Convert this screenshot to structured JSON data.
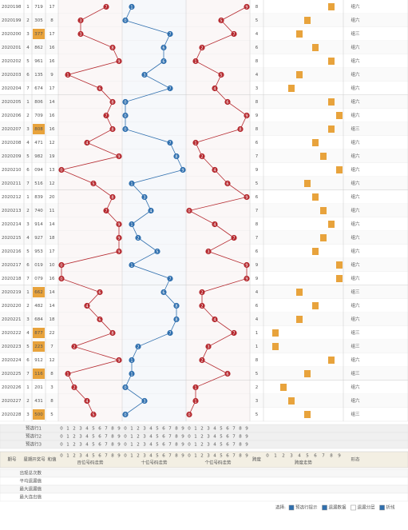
{
  "header": {
    "period": "期号",
    "weekday": "星期",
    "number": "开奖号",
    "sum": "和值",
    "hundreds": "百位号码走势",
    "tens": "十位号码走势",
    "units": "个位号码走势",
    "span": "跨度",
    "span_trend": "跨度走势",
    "shape": "形态",
    "digits": [
      0,
      1,
      2,
      3,
      4,
      5,
      6,
      7,
      8,
      9
    ]
  },
  "rows": [
    {
      "period": "2020198",
      "weekday": 1,
      "number": "719",
      "digits": [
        7,
        1,
        9
      ],
      "sum": 17,
      "span": 8,
      "shape": "组六"
    },
    {
      "period": "2020199",
      "weekday": 2,
      "number": "305",
      "digits": [
        3,
        0,
        5
      ],
      "sum": 8,
      "span": 5,
      "shape": "组六"
    },
    {
      "period": "2020200",
      "weekday": 3,
      "number": "377",
      "digits": [
        3,
        7,
        7
      ],
      "sum": 17,
      "span": 4,
      "shape": "组三"
    },
    {
      "period": "2020201",
      "weekday": 4,
      "number": "862",
      "digits": [
        8,
        6,
        2
      ],
      "sum": 16,
      "span": 6,
      "shape": "组六"
    },
    {
      "period": "2020202",
      "weekday": 5,
      "number": "961",
      "digits": [
        9,
        6,
        1
      ],
      "sum": 16,
      "span": 8,
      "shape": "组六"
    },
    {
      "period": "2020203",
      "weekday": 6,
      "number": "135",
      "digits": [
        1,
        3,
        5
      ],
      "sum": 9,
      "span": 4,
      "shape": "组六"
    },
    {
      "period": "2020204",
      "weekday": 7,
      "number": "674",
      "digits": [
        6,
        7,
        4
      ],
      "sum": 17,
      "span": 3,
      "shape": "组六"
    },
    {
      "period": "2020205",
      "weekday": 1,
      "number": "806",
      "digits": [
        8,
        0,
        6
      ],
      "sum": 14,
      "span": 8,
      "shape": "组六"
    },
    {
      "period": "2020206",
      "weekday": 2,
      "number": "709",
      "digits": [
        7,
        0,
        9
      ],
      "sum": 16,
      "span": 9,
      "shape": "组六"
    },
    {
      "period": "2020207",
      "weekday": 3,
      "number": "808",
      "digits": [
        8,
        0,
        8
      ],
      "sum": 16,
      "span": 8,
      "shape": "组三"
    },
    {
      "period": "2020208",
      "weekday": 4,
      "number": "471",
      "digits": [
        4,
        7,
        1
      ],
      "sum": 12,
      "span": 6,
      "shape": "组六"
    },
    {
      "period": "2020209",
      "weekday": 5,
      "number": "982",
      "digits": [
        9,
        8,
        2
      ],
      "sum": 19,
      "span": 7,
      "shape": "组六"
    },
    {
      "period": "2020210",
      "weekday": 6,
      "number": "094",
      "digits": [
        0,
        9,
        4
      ],
      "sum": 13,
      "span": 9,
      "shape": "组六"
    },
    {
      "period": "2020211",
      "weekday": 7,
      "number": "516",
      "digits": [
        5,
        1,
        6
      ],
      "sum": 12,
      "span": 5,
      "shape": "组六"
    },
    {
      "period": "2020212",
      "weekday": 1,
      "number": "839",
      "digits": [
        8,
        3,
        9
      ],
      "sum": 20,
      "span": 6,
      "shape": "组六"
    },
    {
      "period": "2020213",
      "weekday": 2,
      "number": "740",
      "digits": [
        7,
        4,
        0
      ],
      "sum": 11,
      "span": 7,
      "shape": "组六"
    },
    {
      "period": "2020214",
      "weekday": 3,
      "number": "914",
      "digits": [
        9,
        1,
        4
      ],
      "sum": 14,
      "span": 8,
      "shape": "组六"
    },
    {
      "period": "2020215",
      "weekday": 4,
      "number": "927",
      "digits": [
        9,
        2,
        7
      ],
      "sum": 18,
      "span": 7,
      "shape": "组六"
    },
    {
      "period": "2020216",
      "weekday": 5,
      "number": "953",
      "digits": [
        9,
        5,
        3
      ],
      "sum": 17,
      "span": 6,
      "shape": "组六"
    },
    {
      "period": "2020217",
      "weekday": 6,
      "number": "019",
      "digits": [
        0,
        1,
        9
      ],
      "sum": 10,
      "span": 9,
      "shape": "组六"
    },
    {
      "period": "2020218",
      "weekday": 7,
      "number": "079",
      "digits": [
        0,
        7,
        9
      ],
      "sum": 16,
      "span": 9,
      "shape": "组六"
    },
    {
      "period": "2020219",
      "weekday": 1,
      "number": "662",
      "digits": [
        6,
        6,
        2
      ],
      "sum": 14,
      "span": 4,
      "shape": "组三"
    },
    {
      "period": "2020220",
      "weekday": 2,
      "number": "482",
      "digits": [
        4,
        8,
        2
      ],
      "sum": 14,
      "span": 6,
      "shape": "组六"
    },
    {
      "period": "2020221",
      "weekday": 3,
      "number": "684",
      "digits": [
        6,
        8,
        4
      ],
      "sum": 18,
      "span": 4,
      "shape": "组六"
    },
    {
      "period": "2020222",
      "weekday": 4,
      "number": "877",
      "digits": [
        8,
        7,
        7
      ],
      "sum": 22,
      "span": 1,
      "shape": "组三"
    },
    {
      "period": "2020223",
      "weekday": 5,
      "number": "223",
      "digits": [
        2,
        2,
        3
      ],
      "sum": 7,
      "span": 1,
      "shape": "组三"
    },
    {
      "period": "2020224",
      "weekday": 6,
      "number": "912",
      "digits": [
        9,
        1,
        2
      ],
      "sum": 12,
      "span": 8,
      "shape": "组六"
    },
    {
      "period": "2020225",
      "weekday": 7,
      "number": "116",
      "digits": [
        1,
        1,
        6
      ],
      "sum": 8,
      "span": 5,
      "shape": "组三"
    },
    {
      "period": "2020226",
      "weekday": 1,
      "number": "201",
      "digits": [
        2,
        0,
        1
      ],
      "sum": 3,
      "span": 2,
      "shape": "组六"
    },
    {
      "period": "2020227",
      "weekday": 2,
      "number": "431",
      "digits": [
        4,
        3,
        1
      ],
      "sum": 8,
      "span": 3,
      "shape": "组六"
    },
    {
      "period": "2020228",
      "weekday": 3,
      "number": "500",
      "digits": [
        5,
        0,
        0
      ],
      "sum": 5,
      "span": 5,
      "shape": "组三"
    }
  ],
  "preselect": [
    "预选行1",
    "预选行2",
    "预选行3"
  ],
  "stats": [
    "出现总次数",
    "平均遗漏值",
    "最大遗漏值",
    "最大连出值"
  ],
  "footer": {
    "label": "选择:",
    "options": [
      {
        "text": "预选行提示",
        "checked": true
      },
      {
        "text": "遗漏数据",
        "checked": true
      },
      {
        "text": "遗漏分层",
        "checked": false
      },
      {
        "text": "折线",
        "checked": true
      }
    ]
  },
  "colors": {
    "hundreds": "#b5292f",
    "tens": "#2f6fae",
    "units": "#b5292f",
    "highlight": "#e8a33c"
  }
}
